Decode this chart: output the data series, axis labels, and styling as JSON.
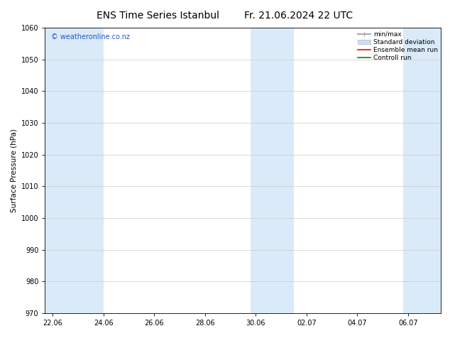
{
  "title": "ENS Time Series Istanbul",
  "title2": "Fr. 21.06.2024 22 UTC",
  "ylabel": "Surface Pressure (hPa)",
  "ylim": [
    970,
    1060
  ],
  "yticks": [
    970,
    980,
    990,
    1000,
    1010,
    1020,
    1030,
    1040,
    1050,
    1060
  ],
  "xtick_labels": [
    "22.06",
    "24.06",
    "26.06",
    "28.06",
    "30.06",
    "02.07",
    "04.07",
    "06.07"
  ],
  "xtick_positions": [
    0,
    2,
    4,
    6,
    8,
    10,
    12,
    14
  ],
  "xlim": [
    -0.3,
    15.3
  ],
  "background_color": "#ffffff",
  "plot_bg_color": "#ffffff",
  "shaded_bands": [
    {
      "x_start": -0.3,
      "x_end": 2.0,
      "color": "#daeaf8"
    },
    {
      "x_start": 7.8,
      "x_end": 9.5,
      "color": "#daeaf8"
    },
    {
      "x_start": 13.8,
      "x_end": 15.3,
      "color": "#daeaf8"
    }
  ],
  "legend_items": [
    {
      "label": "min/max",
      "color": "#aaaaaa",
      "lw": 1.5,
      "style": "minmax"
    },
    {
      "label": "Standard deviation",
      "color": "#ccddf0",
      "lw": 6,
      "style": "std"
    },
    {
      "label": "Ensemble mean run",
      "color": "#ff0000",
      "lw": 1.2,
      "style": "line"
    },
    {
      "label": "Controll run",
      "color": "#008800",
      "lw": 1.2,
      "style": "line"
    }
  ],
  "watermark": "© weatheronline.co.nz",
  "watermark_color": "#2255cc",
  "title_fontsize": 10,
  "title2_fontsize": 10,
  "ylabel_fontsize": 7.5,
  "tick_fontsize": 7,
  "legend_fontsize": 6.5,
  "watermark_fontsize": 7
}
